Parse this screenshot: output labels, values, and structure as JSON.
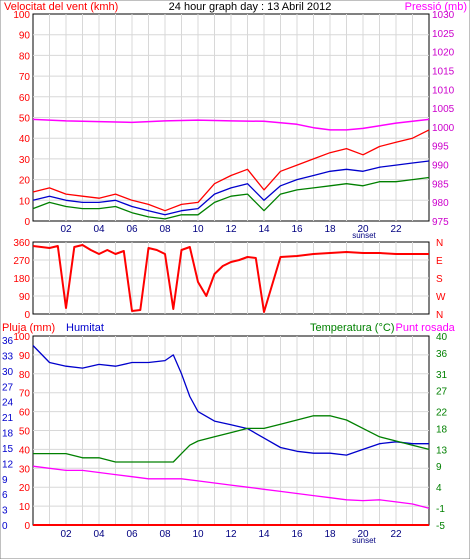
{
  "chart_data": [
    {
      "type": "line",
      "title": "24 hour graph day : 13 Abril 2012",
      "ylabel_left": "Velocitat del vent (kmh)",
      "ylabel_right": "Pressió (mb)",
      "x_ticks": [
        "02",
        "04",
        "06",
        "08",
        "10",
        "12",
        "14",
        "16",
        "18",
        "20",
        "22"
      ],
      "x_annotation": "sunset",
      "ylim_left": [
        0,
        100
      ],
      "yticks_left": [
        0,
        10,
        20,
        30,
        40,
        50,
        60,
        70,
        80,
        90,
        100
      ],
      "ylim_right": [
        975,
        1030
      ],
      "yticks_right": [
        975,
        980,
        985,
        990,
        995,
        1000,
        1005,
        1010,
        1015,
        1020,
        1025,
        1030
      ],
      "grid": true,
      "series": [
        {
          "role": "gust",
          "color": "#ff0000",
          "axis": "left",
          "x": [
            0,
            1,
            2,
            3,
            4,
            5,
            6,
            7,
            8,
            9,
            10,
            11,
            12,
            13,
            14,
            15,
            16,
            17,
            18,
            19,
            20,
            21,
            22,
            23,
            24
          ],
          "y": [
            14,
            16,
            13,
            12,
            11,
            13,
            10,
            8,
            5,
            8,
            9,
            18,
            22,
            25,
            15,
            24,
            27,
            30,
            33,
            35,
            32,
            36,
            38,
            40,
            44
          ]
        },
        {
          "role": "average",
          "color": "#0000cc",
          "axis": "left",
          "x": [
            0,
            1,
            2,
            3,
            4,
            5,
            6,
            7,
            8,
            9,
            10,
            11,
            12,
            13,
            14,
            15,
            16,
            17,
            18,
            19,
            20,
            21,
            22,
            23,
            24
          ],
          "y": [
            10,
            12,
            10,
            9,
            9,
            10,
            7,
            5,
            3,
            5,
            6,
            13,
            16,
            18,
            10,
            17,
            20,
            22,
            24,
            25,
            24,
            26,
            27,
            28,
            29
          ]
        },
        {
          "role": "low",
          "color": "#008000",
          "axis": "left",
          "x": [
            0,
            1,
            2,
            3,
            4,
            5,
            6,
            7,
            8,
            9,
            10,
            11,
            12,
            13,
            14,
            15,
            16,
            17,
            18,
            19,
            20,
            21,
            22,
            23,
            24
          ],
          "y": [
            6,
            9,
            7,
            6,
            6,
            7,
            4,
            2,
            1,
            3,
            3,
            9,
            12,
            13,
            5,
            13,
            15,
            16,
            17,
            18,
            17,
            19,
            19,
            20,
            21
          ]
        },
        {
          "role": "pressure",
          "color": "#ff00ff",
          "axis": "right",
          "x": [
            0,
            2,
            4,
            6,
            8,
            10,
            12,
            14,
            16,
            17,
            18,
            19,
            20,
            22,
            24
          ],
          "y": [
            1002,
            1001.6,
            1001.4,
            1001.2,
            1001.6,
            1001.8,
            1001.6,
            1001.5,
            1000.7,
            999.8,
            999.2,
            999.2,
            999.6,
            1001,
            1002
          ]
        }
      ]
    },
    {
      "type": "line",
      "ylabel_right_ticks": [
        "N",
        "W",
        "S",
        "E",
        "N"
      ],
      "ylim": [
        0,
        360
      ],
      "yticks": [
        0,
        90,
        180,
        270,
        360
      ],
      "x_ticks": [
        "02",
        "04",
        "06",
        "08",
        "10",
        "12",
        "14",
        "16",
        "18",
        "20",
        "22"
      ],
      "grid": true,
      "series": [
        {
          "role": "wind_direction",
          "color": "#ff0000",
          "x": [
            0,
            0.5,
            1,
            1.5,
            2,
            2.5,
            3,
            3.5,
            4,
            4.5,
            5,
            5.5,
            6,
            6.5,
            7,
            7.5,
            8,
            8.5,
            9,
            9.5,
            10,
            10.5,
            11,
            11.5,
            12,
            12.5,
            13,
            13.5,
            14,
            15,
            16,
            17,
            18,
            19,
            20,
            21,
            22,
            23,
            24
          ],
          "y": [
            340,
            335,
            330,
            340,
            30,
            335,
            345,
            320,
            300,
            320,
            300,
            315,
            15,
            20,
            330,
            320,
            300,
            25,
            320,
            335,
            160,
            90,
            200,
            240,
            260,
            270,
            285,
            280,
            10,
            285,
            290,
            300,
            305,
            310,
            305,
            305,
            300,
            300,
            300
          ]
        }
      ]
    },
    {
      "type": "line",
      "ylabel_left": "Pluja (mm)",
      "ylabel_left2": "Humitat",
      "ylabel_right": "Temperatura (°C)",
      "ylabel_right2": "Punt rosada",
      "ylim_rain": [
        0,
        100
      ],
      "yticks_rain": [
        0,
        10,
        20,
        30,
        40,
        50,
        60,
        70,
        80,
        90,
        100
      ],
      "ylim_humidity": [
        0,
        100
      ],
      "yticks_humidity": [
        0,
        3,
        6,
        9,
        12,
        15,
        18,
        21,
        24,
        27,
        30,
        33,
        36
      ],
      "ylim_temp": [
        -5,
        40
      ],
      "yticks_temp": [
        -5,
        -1,
        4,
        9,
        13,
        18,
        22,
        27,
        31,
        36,
        40
      ],
      "yticks_temp_labels": [
        "-5",
        "-1",
        "4",
        "9",
        "13",
        "18",
        "22",
        "27",
        "31",
        "36",
        "40"
      ],
      "x_ticks": [
        "02",
        "04",
        "06",
        "08",
        "10",
        "12",
        "14",
        "16",
        "18",
        "20",
        "22"
      ],
      "x_annotation": "sunset",
      "grid": true,
      "series": [
        {
          "role": "humidity",
          "color": "#0000cc",
          "x": [
            0,
            1,
            2,
            3,
            4,
            5,
            6,
            7,
            8,
            8.5,
            9,
            9.5,
            10,
            11,
            12,
            13,
            14,
            15,
            16,
            17,
            18,
            19,
            20,
            21,
            22,
            23,
            24
          ],
          "y": [
            95,
            86,
            84,
            83,
            85,
            84,
            86,
            86,
            87,
            90,
            80,
            68,
            60,
            55,
            53,
            51,
            46,
            41,
            39,
            38,
            38,
            37,
            40,
            43,
            44,
            43,
            43
          ]
        },
        {
          "role": "temperature",
          "color": "#008000",
          "x": [
            0,
            1,
            2,
            3,
            4,
            5,
            6,
            7,
            8,
            8.5,
            9,
            9.5,
            10,
            11,
            12,
            13,
            14,
            15,
            16,
            17,
            18,
            19,
            20,
            21,
            22,
            23,
            24
          ],
          "y": [
            12,
            12,
            12,
            11,
            11,
            10,
            10,
            10,
            10,
            10,
            12,
            14,
            15,
            16,
            17,
            18,
            18,
            19,
            20,
            21,
            21,
            20,
            18,
            16,
            15,
            14,
            13
          ]
        },
        {
          "role": "dew_point",
          "color": "#ff00ff",
          "x": [
            0,
            1,
            2,
            3,
            4,
            5,
            6,
            7,
            8,
            9,
            10,
            11,
            12,
            13,
            14,
            15,
            16,
            17,
            18,
            19,
            20,
            21,
            22,
            23,
            24
          ],
          "y": [
            9,
            8.5,
            8,
            8,
            7.5,
            7,
            6.5,
            6,
            6,
            6,
            5.5,
            5,
            4.5,
            4,
            3.5,
            3,
            2.5,
            2,
            1.5,
            1,
            0.8,
            1,
            0.5,
            0,
            -1
          ]
        },
        {
          "role": "rain",
          "color": "#ff0000",
          "x": [
            0,
            24
          ],
          "y": [
            0,
            0
          ]
        }
      ]
    }
  ]
}
